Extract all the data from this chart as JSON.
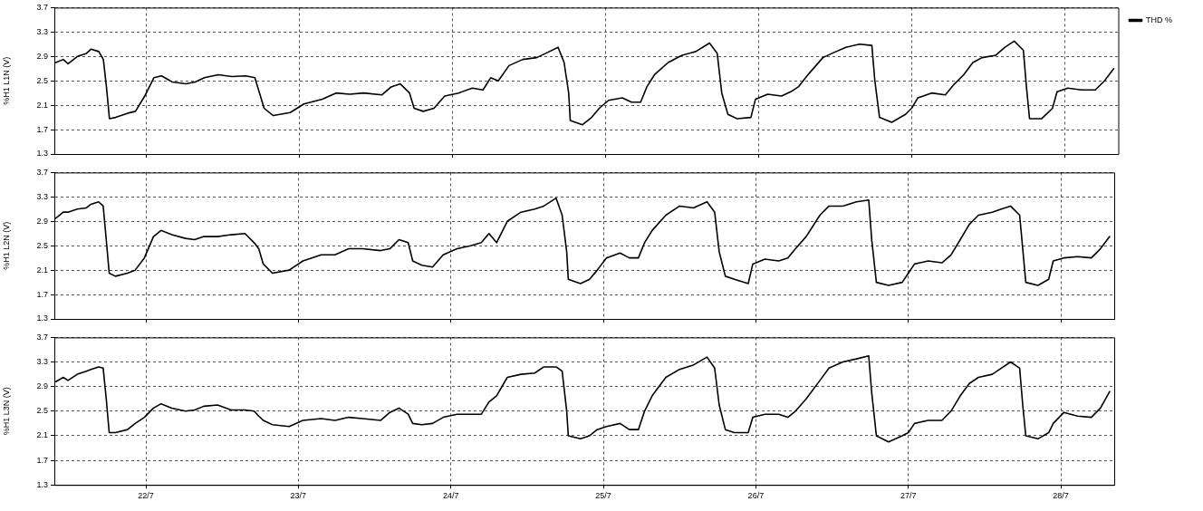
{
  "chart_data": [
    {
      "type": "line",
      "ylabel": "%H1 L1N (V)",
      "xlim": [
        "--07-21T09:36",
        "--07-28T08:24"
      ],
      "xticks": [
        {
          "value": "--07-22",
          "label": null
        },
        {
          "value": "--07-23",
          "label": null
        },
        {
          "value": "--07-24",
          "label": null
        },
        {
          "value": "--07-25",
          "label": null
        },
        {
          "value": "--07-26",
          "label": null
        },
        {
          "value": "--07-27",
          "label": null
        },
        {
          "value": "--07-28",
          "label": null
        }
      ],
      "ylim": [
        1.3,
        3.7
      ],
      "yticks": [
        1.3,
        1.7,
        2.1,
        2.5,
        2.9,
        3.3,
        3.7
      ],
      "grid": true,
      "legend": "right",
      "tick_labels": "y",
      "line_style": "solid",
      "series": [
        {
          "name": "THD %",
          "color": "#000000",
          "x": [
            "--07-21T09:50",
            "--07-21T11:00",
            "--07-21T11:45",
            "--07-21T13:12",
            "--07-21T14:38",
            "--07-21T15:22",
            "--07-21T16:34",
            "--07-21T17:17",
            "--07-21T17:46",
            "--07-21T18:14",
            "--07-21T19:12",
            "--07-21T21:07",
            "--07-21T22:19",
            "--07-21T23:46",
            "--07-22T01:12",
            "--07-22T02:24",
            "--07-22T04:05",
            "--07-22T06:14",
            "--07-22T07:41",
            "--07-22T09:07",
            "--07-22T11:17",
            "--07-22T13:26",
            "--07-22T15:36",
            "--07-22T17:02",
            "--07-22T17:46",
            "--07-22T18:29",
            "--07-22T19:55",
            "--07-22T22:34",
            "--07-23T00:43",
            "--07-23T03:36",
            "--07-23T05:46",
            "--07-23T07:55",
            "--07-23T10:05",
            "--07-23T12:58",
            "--07-23T14:24",
            "--07-23T15:50",
            "--07-23T17:17",
            "--07-23T18:00",
            "--07-23T19:26",
            "--07-23T21:07",
            "--07-23T22:48",
            "--07-24T00:58",
            "--07-24T03:07",
            "--07-24T04:48",
            "--07-24T06:00",
            "--07-24T07:12",
            "--07-24T08:53",
            "--07-24T11:02",
            "--07-24T13:12",
            "--07-24T14:38",
            "--07-24T16:34",
            "--07-24T17:31",
            "--07-24T18:14",
            "--07-24T18:29",
            "--07-24T20:24",
            "--07-24T21:50",
            "--07-24T23:02",
            "--07-25T00:29",
            "--07-25T02:38",
            "--07-25T04:05",
            "--07-25T05:31",
            "--07-25T06:29",
            "--07-25T07:41",
            "--07-25T09:50",
            "--07-25T12:00",
            "--07-25T14:10",
            "--07-25T16:19",
            "--07-25T17:31",
            "--07-25T18:14",
            "--07-25T19:12",
            "--07-25T20:38",
            "--07-25T22:48",
            "--07-25T23:31",
            "--07-26T01:26",
            "--07-26T03:36",
            "--07-26T05:02",
            "--07-26T06:14",
            "--07-26T07:55",
            "--07-26T10:05",
            "--07-26T11:31",
            "--07-26T13:41",
            "--07-26T15:50",
            "--07-26T17:46",
            "--07-26T18:14",
            "--07-26T18:58",
            "--07-26T20:53",
            "--07-26T23:02",
            "--07-27T00:00",
            "--07-27T00:58",
            "--07-27T03:07",
            "--07-27T05:17",
            "--07-27T06:43",
            "--07-27T08:10",
            "--07-27T09:36",
            "--07-27T11:02",
            "--07-27T13:12",
            "--07-27T14:38",
            "--07-27T16:05",
            "--07-27T17:31",
            "--07-27T18:00",
            "--07-27T18:29",
            "--07-27T20:24",
            "--07-27T22:05",
            "--07-27T22:48",
            "--07-28T00:29",
            "--07-28T02:38",
            "--07-28T04:48",
            "--07-28T06:14",
            "--07-28T07:41"
          ],
          "values": [
            2.8,
            2.85,
            2.78,
            2.9,
            2.95,
            3.02,
            2.98,
            2.85,
            2.4,
            1.88,
            1.9,
            1.97,
            2.0,
            2.25,
            2.55,
            2.58,
            2.48,
            2.45,
            2.48,
            2.55,
            2.6,
            2.57,
            2.58,
            2.55,
            2.3,
            2.05,
            1.93,
            1.98,
            2.12,
            2.2,
            2.3,
            2.28,
            2.3,
            2.27,
            2.4,
            2.45,
            2.3,
            2.05,
            2.0,
            2.05,
            2.25,
            2.3,
            2.38,
            2.35,
            2.55,
            2.5,
            2.75,
            2.85,
            2.88,
            2.95,
            3.05,
            2.8,
            2.3,
            1.85,
            1.78,
            1.9,
            2.05,
            2.18,
            2.22,
            2.15,
            2.15,
            2.4,
            2.6,
            2.8,
            2.92,
            2.98,
            3.12,
            2.95,
            2.3,
            1.95,
            1.88,
            1.9,
            2.2,
            2.28,
            2.25,
            2.32,
            2.4,
            2.62,
            2.88,
            2.95,
            3.05,
            3.1,
            3.08,
            2.5,
            1.9,
            1.82,
            1.95,
            2.05,
            2.22,
            2.3,
            2.27,
            2.45,
            2.6,
            2.8,
            2.88,
            2.92,
            3.05,
            3.15,
            3.0,
            2.4,
            1.88,
            1.88,
            2.05,
            2.32,
            2.38,
            2.35,
            2.35,
            2.5,
            2.7
          ]
        }
      ]
    },
    {
      "type": "line",
      "ylabel": "%H1 L2N (V)",
      "xlim": [
        "--07-21T09:36",
        "--07-28T08:24"
      ],
      "xticks": [
        {
          "value": "--07-22",
          "label": null
        },
        {
          "value": "--07-23",
          "label": null
        },
        {
          "value": "--07-24",
          "label": null
        },
        {
          "value": "--07-25",
          "label": null
        },
        {
          "value": "--07-26",
          "label": null
        },
        {
          "value": "--07-27",
          "label": null
        },
        {
          "value": "--07-28",
          "label": null
        }
      ],
      "ylim": [
        1.3,
        3.7
      ],
      "yticks": [
        1.3,
        1.7,
        2.1,
        2.5,
        2.9,
        3.3,
        3.7
      ],
      "grid": true,
      "tick_labels": "y",
      "line_style": "solid",
      "series": [
        {
          "color": "#000000",
          "x": [
            "--07-21T09:50",
            "--07-21T11:00",
            "--07-21T11:45",
            "--07-21T13:12",
            "--07-21T14:38",
            "--07-21T15:22",
            "--07-21T16:34",
            "--07-21T17:17",
            "--07-21T17:46",
            "--07-21T18:14",
            "--07-21T19:12",
            "--07-21T21:07",
            "--07-21T22:19",
            "--07-21T23:46",
            "--07-22T01:12",
            "--07-22T02:24",
            "--07-22T04:05",
            "--07-22T06:14",
            "--07-22T07:41",
            "--07-22T09:07",
            "--07-22T11:17",
            "--07-22T13:26",
            "--07-22T15:36",
            "--07-22T17:02",
            "--07-22T17:46",
            "--07-22T18:29",
            "--07-22T19:55",
            "--07-22T22:34",
            "--07-23T00:43",
            "--07-23T03:36",
            "--07-23T05:46",
            "--07-23T07:55",
            "--07-23T10:05",
            "--07-23T12:58",
            "--07-23T14:24",
            "--07-23T15:50",
            "--07-23T17:17",
            "--07-23T18:00",
            "--07-23T19:26",
            "--07-23T21:07",
            "--07-23T22:48",
            "--07-24T00:58",
            "--07-24T03:07",
            "--07-24T04:48",
            "--07-24T06:00",
            "--07-24T07:12",
            "--07-24T08:53",
            "--07-24T11:02",
            "--07-24T13:12",
            "--07-24T14:38",
            "--07-24T16:34",
            "--07-24T17:31",
            "--07-24T18:14",
            "--07-24T18:29",
            "--07-24T20:24",
            "--07-24T21:50",
            "--07-24T23:02",
            "--07-25T00:29",
            "--07-25T02:38",
            "--07-25T04:05",
            "--07-25T05:31",
            "--07-25T06:29",
            "--07-25T07:41",
            "--07-25T09:50",
            "--07-25T12:00",
            "--07-25T14:10",
            "--07-25T16:19",
            "--07-25T17:31",
            "--07-25T18:14",
            "--07-25T19:12",
            "--07-25T20:38",
            "--07-25T22:48",
            "--07-25T23:31",
            "--07-26T01:26",
            "--07-26T03:36",
            "--07-26T05:02",
            "--07-26T06:14",
            "--07-26T07:55",
            "--07-26T10:05",
            "--07-26T11:31",
            "--07-26T13:41",
            "--07-26T15:50",
            "--07-26T17:46",
            "--07-26T18:14",
            "--07-26T18:58",
            "--07-26T20:53",
            "--07-26T23:02",
            "--07-27T00:00",
            "--07-27T00:58",
            "--07-27T03:07",
            "--07-27T05:17",
            "--07-27T06:43",
            "--07-27T08:10",
            "--07-27T09:36",
            "--07-27T11:02",
            "--07-27T13:12",
            "--07-27T14:38",
            "--07-27T16:05",
            "--07-27T17:31",
            "--07-27T18:00",
            "--07-27T18:29",
            "--07-27T20:24",
            "--07-27T22:05",
            "--07-27T22:48",
            "--07-28T00:29",
            "--07-28T02:38",
            "--07-28T04:48",
            "--07-28T06:14",
            "--07-28T07:41"
          ],
          "values": [
            2.95,
            3.05,
            3.05,
            3.1,
            3.12,
            3.18,
            3.22,
            3.15,
            2.6,
            2.05,
            2.0,
            2.05,
            2.1,
            2.3,
            2.65,
            2.75,
            2.68,
            2.62,
            2.6,
            2.65,
            2.65,
            2.68,
            2.7,
            2.55,
            2.45,
            2.2,
            2.05,
            2.1,
            2.25,
            2.35,
            2.35,
            2.45,
            2.45,
            2.42,
            2.45,
            2.6,
            2.55,
            2.25,
            2.18,
            2.15,
            2.35,
            2.45,
            2.5,
            2.55,
            2.7,
            2.55,
            2.9,
            3.05,
            3.1,
            3.15,
            3.28,
            3.0,
            2.4,
            1.95,
            1.88,
            1.95,
            2.1,
            2.3,
            2.38,
            2.3,
            2.3,
            2.55,
            2.75,
            3.0,
            3.15,
            3.12,
            3.22,
            3.05,
            2.4,
            2.0,
            1.95,
            1.88,
            2.2,
            2.28,
            2.25,
            2.3,
            2.45,
            2.65,
            3.0,
            3.15,
            3.15,
            3.22,
            3.25,
            2.6,
            1.9,
            1.85,
            1.9,
            2.05,
            2.2,
            2.25,
            2.22,
            2.35,
            2.6,
            2.85,
            3.0,
            3.05,
            3.1,
            3.15,
            3.0,
            2.45,
            1.9,
            1.85,
            1.95,
            2.25,
            2.3,
            2.32,
            2.3,
            2.45,
            2.65
          ]
        }
      ]
    },
    {
      "type": "line",
      "ylabel": "%H1 L3N (V)",
      "xlim": [
        "--07-21T09:36",
        "--07-28T08:24"
      ],
      "xticks": [
        {
          "value": "--07-22",
          "label": "22/7"
        },
        {
          "value": "--07-23",
          "label": "23/7"
        },
        {
          "value": "--07-24",
          "label": "24/7"
        },
        {
          "value": "--07-25",
          "label": "25/7"
        },
        {
          "value": "--07-26",
          "label": "26/7"
        },
        {
          "value": "--07-27",
          "label": "27/7"
        },
        {
          "value": "--07-28",
          "label": "28/7"
        }
      ],
      "ylim": [
        1.3,
        3.7
      ],
      "yticks": [
        1.3,
        1.7,
        2.1,
        2.5,
        2.9,
        3.3,
        3.7
      ],
      "grid": true,
      "line_style": "solid",
      "series": [
        {
          "color": "#000000",
          "x": [
            "--07-21T09:50",
            "--07-21T11:00",
            "--07-21T11:45",
            "--07-21T13:12",
            "--07-21T14:38",
            "--07-21T15:22",
            "--07-21T16:34",
            "--07-21T17:17",
            "--07-21T17:46",
            "--07-21T18:14",
            "--07-21T19:12",
            "--07-21T21:07",
            "--07-21T22:19",
            "--07-21T23:46",
            "--07-22T01:12",
            "--07-22T02:24",
            "--07-22T04:05",
            "--07-22T06:14",
            "--07-22T07:41",
            "--07-22T09:07",
            "--07-22T11:17",
            "--07-22T13:26",
            "--07-22T15:36",
            "--07-22T17:02",
            "--07-22T17:46",
            "--07-22T18:29",
            "--07-22T19:55",
            "--07-22T22:34",
            "--07-23T00:43",
            "--07-23T03:36",
            "--07-23T05:46",
            "--07-23T07:55",
            "--07-23T10:05",
            "--07-23T12:58",
            "--07-23T14:24",
            "--07-23T15:50",
            "--07-23T17:17",
            "--07-23T18:00",
            "--07-23T19:26",
            "--07-23T21:07",
            "--07-23T22:48",
            "--07-24T00:58",
            "--07-24T03:07",
            "--07-24T04:48",
            "--07-24T06:00",
            "--07-24T07:12",
            "--07-24T08:53",
            "--07-24T11:02",
            "--07-24T13:12",
            "--07-24T14:38",
            "--07-24T16:34",
            "--07-24T17:31",
            "--07-24T18:14",
            "--07-24T18:29",
            "--07-24T20:24",
            "--07-24T21:50",
            "--07-24T23:02",
            "--07-25T00:29",
            "--07-25T02:38",
            "--07-25T04:05",
            "--07-25T05:31",
            "--07-25T06:29",
            "--07-25T07:41",
            "--07-25T09:50",
            "--07-25T12:00",
            "--07-25T14:10",
            "--07-25T16:19",
            "--07-25T17:31",
            "--07-25T18:14",
            "--07-25T19:12",
            "--07-25T20:38",
            "--07-25T22:48",
            "--07-25T23:31",
            "--07-26T01:26",
            "--07-26T03:36",
            "--07-26T05:02",
            "--07-26T06:14",
            "--07-26T07:55",
            "--07-26T10:05",
            "--07-26T11:31",
            "--07-26T13:41",
            "--07-26T15:50",
            "--07-26T17:46",
            "--07-26T18:14",
            "--07-26T18:58",
            "--07-26T20:53",
            "--07-26T23:02",
            "--07-27T00:00",
            "--07-27T00:58",
            "--07-27T03:07",
            "--07-27T05:17",
            "--07-27T06:43",
            "--07-27T08:10",
            "--07-27T09:36",
            "--07-27T11:02",
            "--07-27T13:12",
            "--07-27T14:38",
            "--07-27T16:05",
            "--07-27T17:31",
            "--07-27T18:00",
            "--07-27T18:29",
            "--07-27T20:24",
            "--07-27T22:05",
            "--07-27T22:48",
            "--07-28T00:29",
            "--07-28T02:38",
            "--07-28T04:48",
            "--07-28T06:14",
            "--07-28T07:41"
          ],
          "values": [
            2.98,
            3.05,
            3.0,
            3.1,
            3.15,
            3.18,
            3.22,
            3.2,
            2.7,
            2.15,
            2.15,
            2.2,
            2.3,
            2.4,
            2.55,
            2.62,
            2.55,
            2.5,
            2.52,
            2.58,
            2.6,
            2.52,
            2.52,
            2.5,
            2.42,
            2.35,
            2.28,
            2.25,
            2.35,
            2.38,
            2.35,
            2.4,
            2.38,
            2.35,
            2.48,
            2.55,
            2.45,
            2.3,
            2.28,
            2.3,
            2.4,
            2.45,
            2.45,
            2.45,
            2.65,
            2.75,
            3.05,
            3.1,
            3.12,
            3.22,
            3.22,
            3.15,
            2.5,
            2.1,
            2.05,
            2.1,
            2.2,
            2.25,
            2.3,
            2.2,
            2.2,
            2.5,
            2.75,
            3.05,
            3.18,
            3.25,
            3.38,
            3.2,
            2.6,
            2.2,
            2.15,
            2.15,
            2.4,
            2.45,
            2.45,
            2.4,
            2.5,
            2.7,
            3.0,
            3.2,
            3.3,
            3.35,
            3.4,
            2.8,
            2.1,
            2.0,
            2.1,
            2.15,
            2.3,
            2.35,
            2.35,
            2.5,
            2.75,
            2.95,
            3.05,
            3.1,
            3.2,
            3.3,
            3.2,
            2.6,
            2.1,
            2.05,
            2.15,
            2.3,
            2.48,
            2.42,
            2.4,
            2.55,
            2.82
          ]
        }
      ]
    }
  ]
}
